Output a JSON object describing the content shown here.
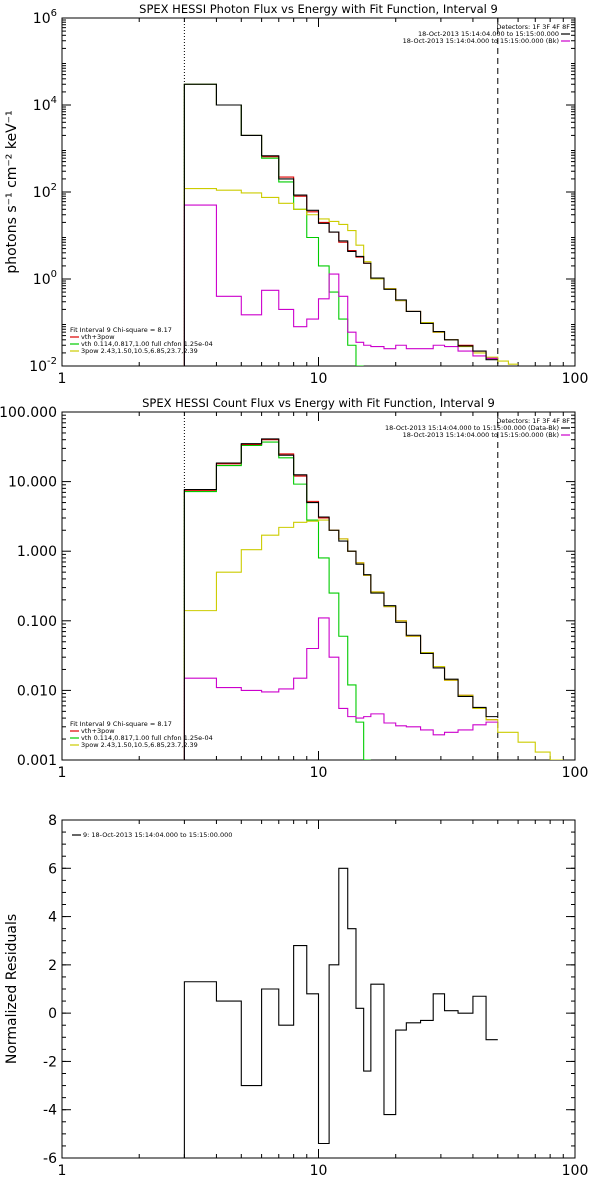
{
  "chart_data": [
    {
      "type": "line",
      "title": "SPEX HESSI Photon Flux vs Energy with Fit Function, Interval 9",
      "xlabel": "",
      "ylabel": "photons s⁻¹ cm⁻² keV⁻¹",
      "xscale": "log",
      "yscale": "log",
      "xlim": [
        1,
        100
      ],
      "ylim": [
        0.01,
        1000000
      ],
      "x_ticks": [
        {
          "v": 1,
          "label": "1"
        },
        {
          "v": 10,
          "label": "10"
        },
        {
          "v": 100,
          "label": "100"
        }
      ],
      "y_ticks": [
        {
          "v": 0.01,
          "m": "10",
          "e": "-2"
        },
        {
          "v": 1,
          "m": "10",
          "e": "0"
        },
        {
          "v": 100,
          "m": "10",
          "e": "2"
        },
        {
          "v": 10000,
          "m": "10",
          "e": "4"
        },
        {
          "v": 1000000,
          "m": "10",
          "e": "6"
        }
      ],
      "vlines": [
        {
          "x": 3.0,
          "style": "dotted"
        },
        {
          "x": 50.0,
          "style": "dashed"
        }
      ],
      "legend_tr": {
        "heading": "Detectors: 1F 3F 4F 8F",
        "items": [
          {
            "text": "18-Oct-2013 15:14:04.000 to 15:15:00.000",
            "color": "#000000"
          },
          {
            "text": "18-Oct-2013 15:14:04.000 to 15:15:00.000 (Bk)",
            "color": "#cc00cc"
          }
        ]
      },
      "legend_bl": {
        "heading": "Fit Interval 9   Chi-square = 8.17",
        "items": [
          {
            "text": "vth+3pow",
            "color": "#dd0000"
          },
          {
            "text": "vth 0.114,0.817,1.00  full chfon 1.25e-04",
            "color": "#00cc00"
          },
          {
            "text": "3pow 2.43,1.50,10.5,6.85,23.7,2.39",
            "color": "#cccc00"
          }
        ]
      },
      "series": [
        {
          "name": "vth+3pow",
          "color": "#dd0000",
          "edges": [
            3.0,
            4.0,
            5.0,
            6.0,
            7.0,
            8.0,
            9.0,
            10.0,
            11.0,
            12.0,
            13.0,
            14.0,
            15.0,
            16.0,
            18.0,
            20.0,
            22.0,
            25.0,
            28.0,
            31.0,
            35.0,
            40.0,
            45.0,
            50.0
          ],
          "values": [
            30000,
            10000,
            2000,
            650,
            220,
            80,
            35,
            20,
            12,
            7,
            4.5,
            3.2,
            2.3,
            1.0,
            0.6,
            0.32,
            0.18,
            0.1,
            0.06,
            0.04,
            0.03,
            0.022,
            0.015
          ]
        },
        {
          "name": "vth",
          "color": "#00cc00",
          "edges": [
            3.0,
            4.0,
            5.0,
            6.0,
            7.0,
            8.0,
            9.0,
            10.0,
            11.0,
            12.0,
            13.0,
            14.0,
            15.0
          ],
          "values": [
            30000,
            10000,
            2000,
            600,
            170,
            40,
            9,
            2,
            0.5,
            0.12,
            0.03,
            0.01
          ]
        },
        {
          "name": "3pow",
          "color": "#cccc00",
          "edges": [
            3.0,
            4.0,
            5.0,
            6.0,
            7.0,
            8.0,
            9.0,
            10.0,
            11.0,
            12.0,
            13.0,
            14.0,
            15.0,
            16.0,
            18.0,
            20.0,
            22.0,
            25.0,
            28.0,
            31.0,
            35.0,
            40.0,
            45.0,
            50.0,
            55.0,
            60.0
          ],
          "values": [
            120,
            110,
            95,
            75,
            55,
            40,
            30,
            24,
            21,
            18,
            13,
            6,
            2.5,
            1.0,
            0.6,
            0.32,
            0.18,
            0.1,
            0.06,
            0.04,
            0.028,
            0.02,
            0.016,
            0.013,
            0.011
          ]
        },
        {
          "name": "Bk",
          "color": "#cc00cc",
          "edges": [
            3.0,
            4.0,
            5.0,
            6.0,
            7.0,
            8.0,
            9.0,
            10.0,
            11.0,
            12.0,
            13.0,
            14.0,
            15.0,
            16.0,
            18.0,
            20.0,
            22.0,
            25.0,
            28.0,
            31.0,
            35.0,
            40.0,
            45.0,
            50.0
          ],
          "values": [
            50,
            0.4,
            0.15,
            0.55,
            0.2,
            0.08,
            0.12,
            0.35,
            1.3,
            0.4,
            0.06,
            0.035,
            0.03,
            0.028,
            0.025,
            0.03,
            0.025,
            0.025,
            0.03,
            0.028,
            0.022,
            0.017,
            0.015
          ]
        },
        {
          "name": "data",
          "color": "#000000",
          "edges": [
            3.0,
            4.0,
            5.0,
            6.0,
            7.0,
            8.0,
            9.0,
            10.0,
            11.0,
            12.0,
            13.0,
            14.0,
            15.0,
            16.0,
            18.0,
            20.0,
            22.0,
            25.0,
            28.0,
            31.0,
            35.0,
            40.0,
            45.0,
            50.0
          ],
          "values": [
            30000,
            10000,
            2000,
            680,
            200,
            85,
            38,
            19,
            12,
            7.5,
            4.3,
            3.3,
            2.3,
            1.05,
            0.58,
            0.33,
            0.18,
            0.095,
            0.062,
            0.04,
            0.029,
            0.022,
            0.014
          ]
        }
      ]
    },
    {
      "type": "line",
      "title": "SPEX HESSI Count Flux vs Energy with Fit Function, Interval 9",
      "xlabel": "",
      "ylabel": "",
      "xscale": "log",
      "yscale": "log",
      "xlim": [
        1,
        100
      ],
      "ylim": [
        0.001,
        100
      ],
      "x_ticks": [
        {
          "v": 1,
          "label": "1"
        },
        {
          "v": 10,
          "label": "10"
        },
        {
          "v": 100,
          "label": "100"
        }
      ],
      "y_ticks": [
        {
          "v": 0.001,
          "label": "0.001"
        },
        {
          "v": 0.01,
          "label": "0.010"
        },
        {
          "v": 0.1,
          "label": "0.100"
        },
        {
          "v": 1,
          "label": "1.000"
        },
        {
          "v": 10,
          "label": "10.000"
        },
        {
          "v": 100,
          "label": "100.000"
        }
      ],
      "vlines": [
        {
          "x": 3.0,
          "style": "dotted"
        },
        {
          "x": 50.0,
          "style": "dashed"
        }
      ],
      "legend_tr": {
        "heading": "Detectors: 1F 3F 4F 8F",
        "items": [
          {
            "text": "18-Oct-2013 15:14:04.000 to 15:15:00.000 (Data-Bk)",
            "color": "#000000"
          },
          {
            "text": "18-Oct-2013 15:14:04.000 to 15:15:00.000 (Bk)",
            "color": "#cc00cc"
          }
        ]
      },
      "legend_bl": {
        "heading": "Fit Interval 9   Chi-square = 8.17",
        "items": [
          {
            "text": "vth+3pow",
            "color": "#dd0000"
          },
          {
            "text": "vth 0.114,0.817,1.00  full chfon 1.25e-04",
            "color": "#00cc00"
          },
          {
            "text": "3pow 2.43,1.50,10.5,6.85,23.7,2.39",
            "color": "#cccc00"
          }
        ]
      },
      "series": [
        {
          "name": "vth+3pow",
          "color": "#dd0000",
          "edges": [
            3.0,
            4.0,
            5.0,
            6.0,
            7.0,
            8.0,
            9.0,
            10.0,
            11.0,
            12.0,
            13.0,
            14.0,
            15.0,
            16.0,
            18.0,
            20.0,
            22.0,
            25.0,
            28.0,
            31.0,
            35.0,
            40.0,
            45.0,
            50.0
          ],
          "values": [
            7.5,
            18,
            34,
            40,
            25,
            12,
            5.2,
            3.0,
            2.0,
            1.5,
            1.0,
            0.68,
            0.45,
            0.26,
            0.16,
            0.1,
            0.06,
            0.035,
            0.022,
            0.014,
            0.0085,
            0.0055,
            0.0038
          ]
        },
        {
          "name": "vth",
          "color": "#00cc00",
          "edges": [
            3.0,
            4.0,
            5.0,
            6.0,
            7.0,
            8.0,
            9.0,
            10.0,
            11.0,
            12.0,
            13.0,
            14.0,
            15.0,
            16.0
          ],
          "values": [
            7.2,
            17,
            33,
            37,
            22,
            9.2,
            2.8,
            0.8,
            0.25,
            0.06,
            0.012,
            0.0035,
            0.001
          ]
        },
        {
          "name": "3pow",
          "color": "#cccc00",
          "edges": [
            3.0,
            4.0,
            5.0,
            6.0,
            7.0,
            8.0,
            9.0,
            10.0,
            11.0,
            12.0,
            13.0,
            14.0,
            15.0,
            16.0,
            18.0,
            20.0,
            22.0,
            25.0,
            28.0,
            31.0,
            35.0,
            40.0,
            45.0,
            50.0,
            60.0,
            70.0,
            80.0,
            90.0
          ],
          "values": [
            0.14,
            0.5,
            1.05,
            1.7,
            2.2,
            2.6,
            2.7,
            2.8,
            2.0,
            1.5,
            1.0,
            0.68,
            0.45,
            0.26,
            0.16,
            0.1,
            0.06,
            0.035,
            0.022,
            0.014,
            0.0085,
            0.0055,
            0.0038,
            0.0025,
            0.0018,
            0.0013,
            0.001
          ]
        },
        {
          "name": "Bk",
          "color": "#cc00cc",
          "edges": [
            3.0,
            4.0,
            5.0,
            6.0,
            7.0,
            8.0,
            9.0,
            10.0,
            11.0,
            12.0,
            13.0,
            14.0,
            15.0,
            16.0,
            18.0,
            20.0,
            22.0,
            25.0,
            28.0,
            31.0,
            35.0,
            40.0,
            45.0,
            50.0
          ],
          "values": [
            0.015,
            0.011,
            0.01,
            0.0095,
            0.0105,
            0.015,
            0.04,
            0.11,
            0.03,
            0.0055,
            0.0042,
            0.004,
            0.0042,
            0.0046,
            0.0034,
            0.0031,
            0.003,
            0.0027,
            0.0023,
            0.0025,
            0.0027,
            0.0032,
            0.0035
          ]
        },
        {
          "name": "data",
          "color": "#000000",
          "edges": [
            3.0,
            4.0,
            5.0,
            6.0,
            7.0,
            8.0,
            9.0,
            10.0,
            11.0,
            12.0,
            13.0,
            14.0,
            15.0,
            16.0,
            18.0,
            20.0,
            22.0,
            25.0,
            28.0,
            31.0,
            35.0,
            40.0,
            45.0,
            50.0
          ],
          "values": [
            7.7,
            18.5,
            35,
            41,
            24,
            12.5,
            5.0,
            3.1,
            2.0,
            1.4,
            1.0,
            0.65,
            0.46,
            0.25,
            0.165,
            0.095,
            0.062,
            0.034,
            0.021,
            0.0145,
            0.0082,
            0.0057,
            0.0042
          ]
        }
      ]
    },
    {
      "type": "line",
      "title": "",
      "xlabel": "",
      "ylabel": "Normalized Residuals",
      "xscale": "log",
      "yscale": "linear",
      "xlim": [
        1,
        100
      ],
      "ylim": [
        -6,
        8
      ],
      "x_ticks": [
        {
          "v": 1,
          "label": "1"
        },
        {
          "v": 10,
          "label": "10"
        },
        {
          "v": 100,
          "label": "100"
        }
      ],
      "y_ticks": [
        {
          "v": -6,
          "label": "-6"
        },
        {
          "v": -4,
          "label": "-4"
        },
        {
          "v": -2,
          "label": "-2"
        },
        {
          "v": 0,
          "label": "0"
        },
        {
          "v": 2,
          "label": "2"
        },
        {
          "v": 4,
          "label": "4"
        },
        {
          "v": 6,
          "label": "6"
        },
        {
          "v": 8,
          "label": "8"
        }
      ],
      "vlines": [],
      "legend_tr": null,
      "legend_bl": null,
      "legend_tl": {
        "items": [
          {
            "text": "9: 18-Oct-2013 15:14:04.000 to 15:15:00.000",
            "color": "#000000"
          }
        ]
      },
      "series": [
        {
          "name": "residuals",
          "color": "#000000",
          "edges": [
            3.0,
            4.0,
            5.0,
            6.0,
            7.0,
            8.0,
            9.0,
            10.0,
            11.0,
            12.0,
            13.0,
            14.0,
            15.0,
            16.0,
            18.0,
            20.0,
            22.0,
            25.0,
            28.0,
            31.0,
            35.0,
            40.0,
            45.0,
            50.0
          ],
          "values": [
            1.3,
            0.5,
            -3.0,
            1.0,
            -0.5,
            2.8,
            0.8,
            -5.4,
            2.0,
            6.0,
            3.5,
            0.2,
            -2.4,
            1.2,
            -4.2,
            -0.7,
            -0.4,
            -0.3,
            0.8,
            0.1,
            0.0,
            0.7,
            -1.1
          ]
        }
      ]
    }
  ]
}
